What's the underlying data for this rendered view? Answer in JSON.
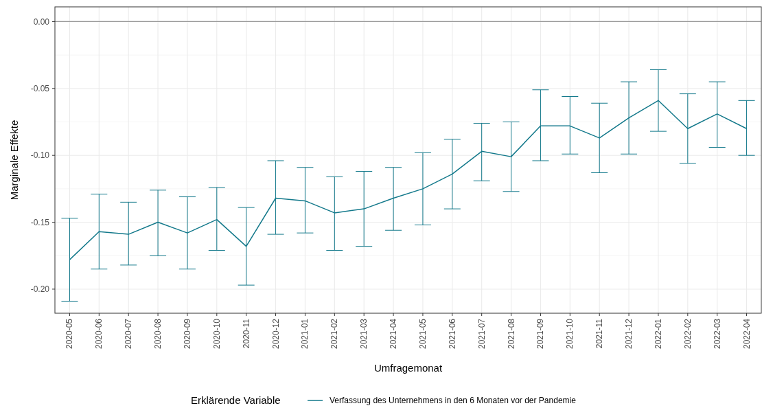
{
  "chart_data": {
    "type": "line",
    "xlabel": "Umfragemonat",
    "ylabel": "Marginale Effekte",
    "legend_title": "Erklärende Variable",
    "categories": [
      "2020-05",
      "2020-06",
      "2020-07",
      "2020-08",
      "2020-09",
      "2020-10",
      "2020-11",
      "2020-12",
      "2021-01",
      "2021-02",
      "2021-03",
      "2021-04",
      "2021-05",
      "2021-06",
      "2021-07",
      "2021-08",
      "2021-09",
      "2021-10",
      "2021-11",
      "2021-12",
      "2022-01",
      "2022-02",
      "2022-03",
      "2022-04"
    ],
    "series": [
      {
        "name": "Verfassung des Unternehmens in den 6 Monaten vor der Pandemie",
        "color": "#13798b",
        "values": [
          -0.178,
          -0.157,
          -0.159,
          -0.15,
          -0.158,
          -0.148,
          -0.168,
          -0.132,
          -0.134,
          -0.143,
          -0.14,
          -0.132,
          -0.125,
          -0.114,
          -0.097,
          -0.101,
          -0.078,
          -0.078,
          -0.087,
          -0.072,
          -0.059,
          -0.08,
          -0.069,
          -0.08
        ],
        "errors": [
          [
            -0.209,
            -0.147
          ],
          [
            -0.185,
            -0.129
          ],
          [
            -0.182,
            -0.135
          ],
          [
            -0.175,
            -0.126
          ],
          [
            -0.185,
            -0.131
          ],
          [
            -0.171,
            -0.124
          ],
          [
            -0.197,
            -0.139
          ],
          [
            -0.159,
            -0.104
          ],
          [
            -0.158,
            -0.109
          ],
          [
            -0.171,
            -0.116
          ],
          [
            -0.168,
            -0.112
          ],
          [
            -0.156,
            -0.109
          ],
          [
            -0.152,
            -0.098
          ],
          [
            -0.14,
            -0.088
          ],
          [
            -0.119,
            -0.076
          ],
          [
            -0.127,
            -0.075
          ],
          [
            -0.104,
            -0.051
          ],
          [
            -0.099,
            -0.056
          ],
          [
            -0.113,
            -0.061
          ],
          [
            -0.099,
            -0.045
          ],
          [
            -0.082,
            -0.036
          ],
          [
            -0.106,
            -0.054
          ],
          [
            -0.094,
            -0.045
          ],
          [
            -0.1,
            -0.059
          ]
        ]
      }
    ],
    "ylim": [
      -0.218,
      0.011
    ],
    "yticks": [
      {
        "value": 0,
        "label": "0.00"
      },
      {
        "value": -0.05,
        "label": "-0.05"
      },
      {
        "value": -0.1,
        "label": "-0.10"
      },
      {
        "value": -0.15,
        "label": "-0.15"
      },
      {
        "value": -0.2,
        "label": "-0.20"
      }
    ],
    "ref_lines": [
      {
        "axis": "y",
        "value": 0,
        "color": "#999999"
      }
    ],
    "grid": true,
    "legend": "bottom",
    "marker": "none",
    "line_style": "solid"
  }
}
